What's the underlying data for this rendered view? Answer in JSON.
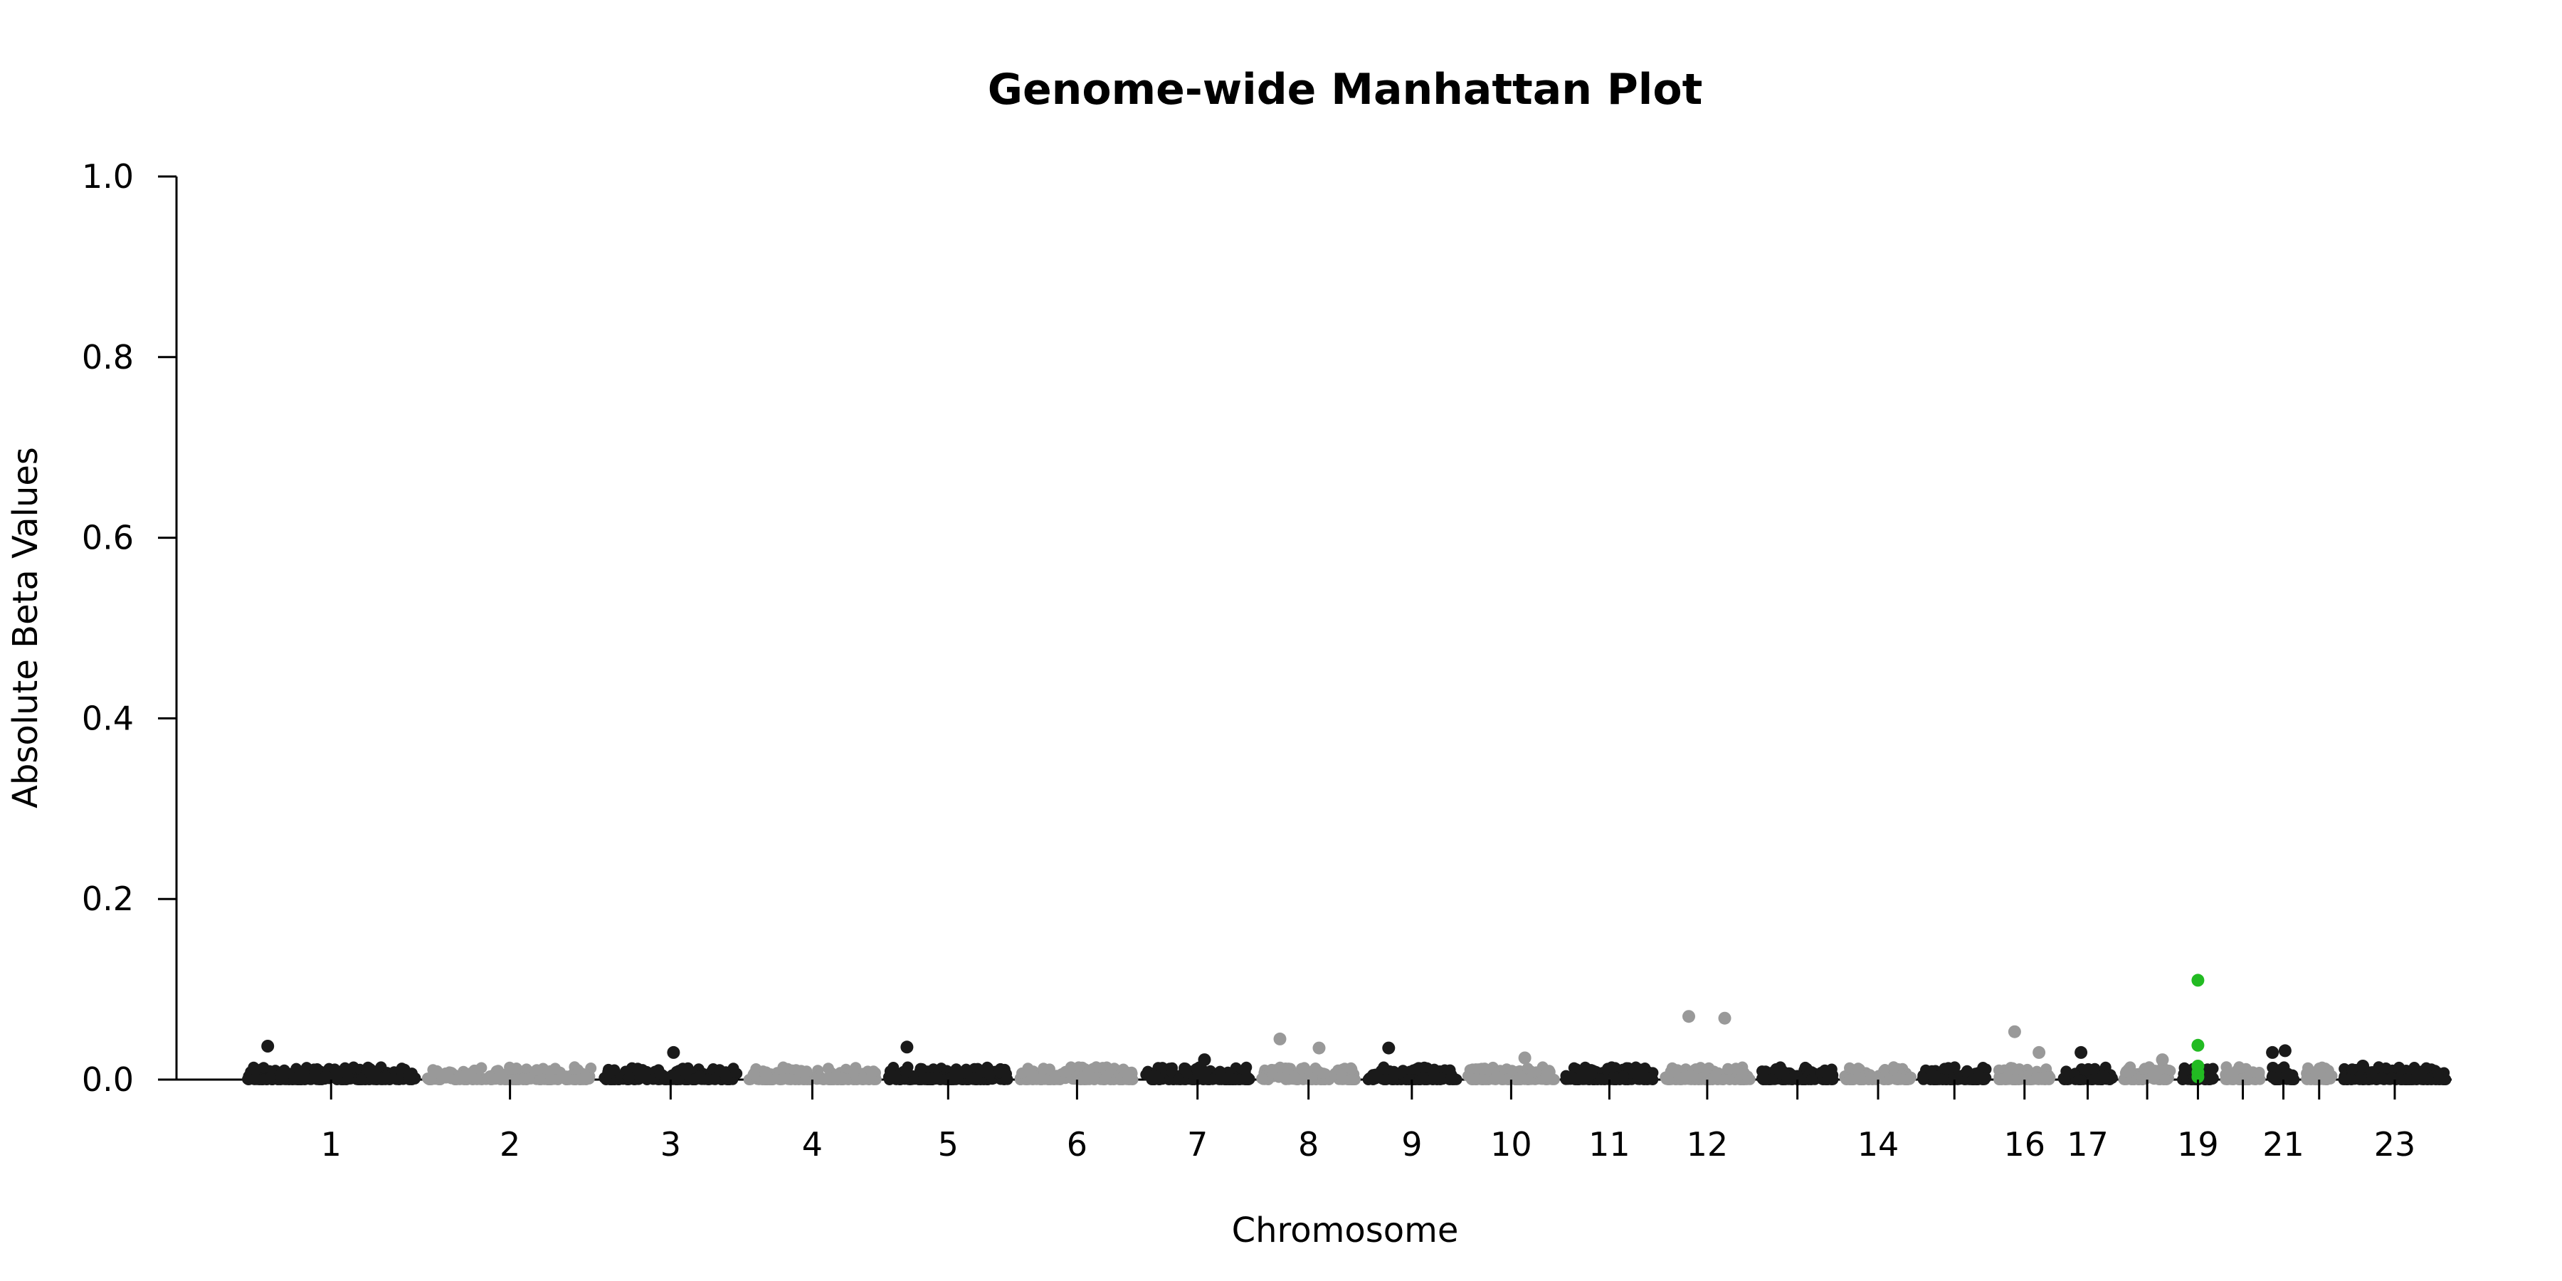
{
  "chart_data": {
    "type": "scatter",
    "title": "Genome-wide Manhattan Plot",
    "xlabel": "Chromosome",
    "ylabel": "Absolute Beta Values",
    "ylim": [
      0,
      1.0
    ],
    "y_ticks": [
      "0.0",
      "0.2",
      "0.4",
      "0.6",
      "0.8",
      "1.0"
    ],
    "x_tick_labels": [
      "1",
      "2",
      "3",
      "4",
      "5",
      "6",
      "7",
      "8",
      "9",
      "10",
      "11",
      "12",
      "14",
      "16",
      "17",
      "19",
      "21",
      "23"
    ],
    "grid": false,
    "legend": "none",
    "colors": {
      "odd": "#1a1a1a",
      "even": "#999999",
      "highlight": "#22bb22"
    },
    "chromosomes": [
      {
        "chr": 1,
        "label": "1"
      },
      {
        "chr": 2,
        "label": "2"
      },
      {
        "chr": 3,
        "label": "3"
      },
      {
        "chr": 4,
        "label": "4"
      },
      {
        "chr": 5,
        "label": "5"
      },
      {
        "chr": 6,
        "label": "6"
      },
      {
        "chr": 7,
        "label": "7"
      },
      {
        "chr": 8,
        "label": "8"
      },
      {
        "chr": 9,
        "label": "9"
      },
      {
        "chr": 10,
        "label": "10"
      },
      {
        "chr": 11,
        "label": "11"
      },
      {
        "chr": 12,
        "label": "12"
      },
      {
        "chr": 13,
        "label": ""
      },
      {
        "chr": 14,
        "label": "14"
      },
      {
        "chr": 15,
        "label": ""
      },
      {
        "chr": 16,
        "label": "16"
      },
      {
        "chr": 17,
        "label": "17"
      },
      {
        "chr": 18,
        "label": ""
      },
      {
        "chr": 19,
        "label": "19"
      },
      {
        "chr": 20,
        "label": ""
      },
      {
        "chr": 21,
        "label": "21"
      },
      {
        "chr": 22,
        "label": ""
      },
      {
        "chr": 23,
        "label": "23"
      }
    ],
    "notable_points": [
      {
        "chr": 1,
        "y": 0.037
      },
      {
        "chr": 3,
        "y": 0.03
      },
      {
        "chr": 5,
        "y": 0.036
      },
      {
        "chr": 7,
        "y": 0.022
      },
      {
        "chr": 8,
        "y": 0.045
      },
      {
        "chr": 8,
        "y": 0.035
      },
      {
        "chr": 9,
        "y": 0.035
      },
      {
        "chr": 10,
        "y": 0.024
      },
      {
        "chr": 12,
        "y": 0.07
      },
      {
        "chr": 12,
        "y": 0.068
      },
      {
        "chr": 16,
        "y": 0.053
      },
      {
        "chr": 16,
        "y": 0.03
      },
      {
        "chr": 17,
        "y": 0.03
      },
      {
        "chr": 18,
        "y": 0.022
      },
      {
        "chr": 19,
        "y": 0.11,
        "highlight": true
      },
      {
        "chr": 19,
        "y": 0.038,
        "highlight": true
      },
      {
        "chr": 19,
        "y": 0.015,
        "highlight": true
      },
      {
        "chr": 19,
        "y": 0.008,
        "highlight": true
      },
      {
        "chr": 19,
        "y": 0.003,
        "highlight": true
      },
      {
        "chr": 21,
        "y": 0.03
      },
      {
        "chr": 21,
        "y": 0.032
      },
      {
        "chr": 23,
        "y": 0.015
      }
    ]
  }
}
